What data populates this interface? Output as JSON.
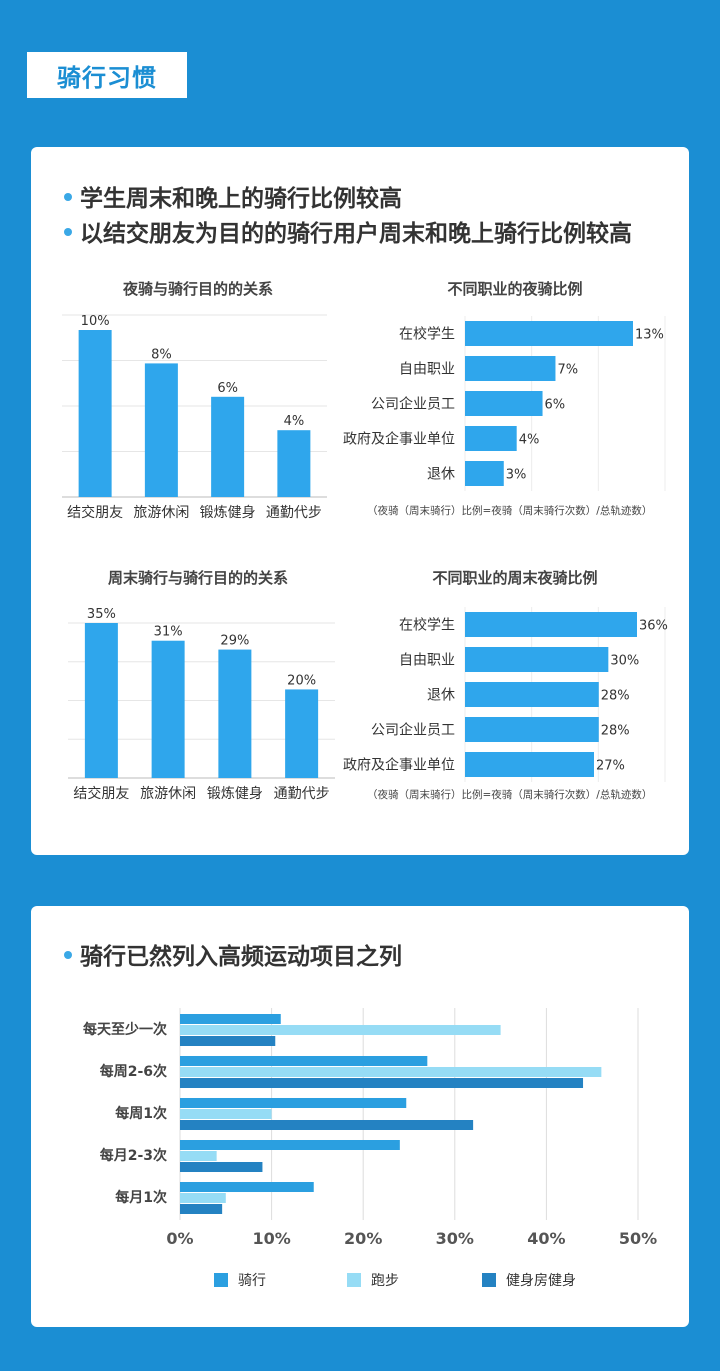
{
  "section_tag": "骑行习惯",
  "card1": {
    "bullets": [
      "学生周末和晚上的骑行比例较高",
      "以结交朋友为目的的骑行用户周末和晚上骑行比例较高"
    ]
  },
  "card2": {
    "bullets": [
      "骑行已然列入高频运动项目之列"
    ]
  },
  "colors": {
    "background": "#1b8ed3",
    "bar": "#2fa6ec",
    "riding": "#2b9fe0",
    "running": "#96dcf5",
    "gym": "#2482c2"
  },
  "chart_data": [
    {
      "id": "night_purpose",
      "type": "bar",
      "title": "夜骑与骑行目的的关系",
      "categories": [
        "结交朋友",
        "旅游休闲",
        "锻炼健身",
        "通勤代步"
      ],
      "values": [
        10,
        8,
        6,
        4
      ],
      "labels": [
        "10%",
        "8%",
        "6%",
        "4%"
      ],
      "ylim": [
        0,
        10
      ],
      "grid": true
    },
    {
      "id": "night_job",
      "type": "bar",
      "orientation": "horizontal",
      "title": "不同职业的夜骑比例",
      "categories": [
        "在校学生",
        "自由职业",
        "公司企业员工",
        "政府及企事业单位",
        "退休"
      ],
      "values": [
        13,
        7,
        6,
        4,
        3
      ],
      "labels": [
        "13%",
        "7%",
        "6%",
        "4%",
        "3%"
      ],
      "note": "（夜骑（周末骑行）比例=夜骑（周末骑行次数）/总轨迹数）",
      "grid": true
    },
    {
      "id": "weekend_purpose",
      "type": "bar",
      "title": "周末骑行与骑行目的的关系",
      "categories": [
        "结交朋友",
        "旅游休闲",
        "锻炼健身",
        "通勤代步"
      ],
      "values": [
        35,
        31,
        29,
        20
      ],
      "labels": [
        "35%",
        "31%",
        "29%",
        "20%"
      ],
      "ylim": [
        0,
        35
      ],
      "grid": true
    },
    {
      "id": "weekend_job",
      "type": "bar",
      "orientation": "horizontal",
      "title": "不同职业的周末夜骑比例",
      "categories": [
        "在校学生",
        "自由职业",
        "退休",
        "公司企业员工",
        "政府及企事业单位"
      ],
      "values": [
        36,
        30,
        28,
        28,
        27
      ],
      "labels": [
        "36%",
        "30%",
        "28%",
        "28%",
        "27%"
      ],
      "note": "（夜骑（周末骑行）比例=夜骑（周末骑行次数）/总轨迹数）",
      "grid": true
    },
    {
      "id": "frequency",
      "type": "bar",
      "orientation": "horizontal",
      "categories": [
        "每天至少一次",
        "每周2-6次",
        "每周1次",
        "每月2-3次",
        "每月1次"
      ],
      "series": [
        {
          "name": "骑行",
          "values": [
            11,
            27,
            24.7,
            24,
            14.6
          ]
        },
        {
          "name": "跑步",
          "values": [
            35,
            46,
            10,
            4,
            5
          ]
        },
        {
          "name": "健身房健身",
          "values": [
            10.4,
            44,
            32,
            9,
            4.6
          ]
        }
      ],
      "xlim": [
        0,
        50
      ],
      "xticks": [
        "0%",
        "10%",
        "20%",
        "30%",
        "40%",
        "50%"
      ],
      "legend": "bottom",
      "grid": true
    }
  ]
}
